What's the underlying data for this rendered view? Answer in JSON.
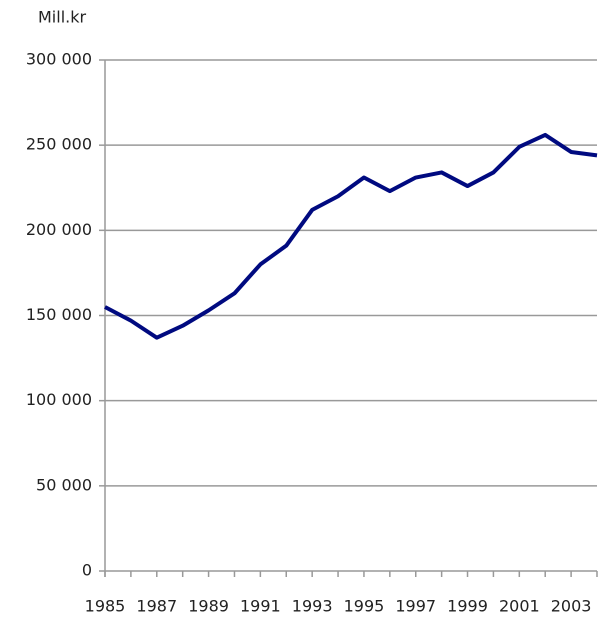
{
  "chart_data": {
    "type": "line",
    "y_label": "Mill.kr",
    "categories": [
      "1985",
      null,
      "1987",
      null,
      "1989",
      null,
      "1991",
      null,
      "1993",
      null,
      "1995",
      null,
      "1997",
      null,
      "1999",
      null,
      "2001",
      null,
      "2003",
      null
    ],
    "series": [
      {
        "name": "Mill.kr",
        "color": "#000a80",
        "values": [
          155000,
          147000,
          137000,
          144000,
          153000,
          163000,
          180000,
          191000,
          212000,
          220000,
          231000,
          223000,
          231000,
          234000,
          226000,
          234000,
          249000,
          256000,
          246000,
          244000
        ]
      }
    ],
    "ylim": [
      0,
      300000
    ],
    "yticks": [
      0,
      {
        "value": 50000,
        "label": "50 000"
      },
      {
        "value": 100000,
        "label": "100 000"
      },
      {
        "value": 150000,
        "label": "150 000"
      },
      {
        "value": 200000,
        "label": "200 000"
      },
      {
        "value": 250000,
        "label": "250 000"
      },
      {
        "value": 300000,
        "label": "300 000"
      }
    ],
    "grid": true
  }
}
